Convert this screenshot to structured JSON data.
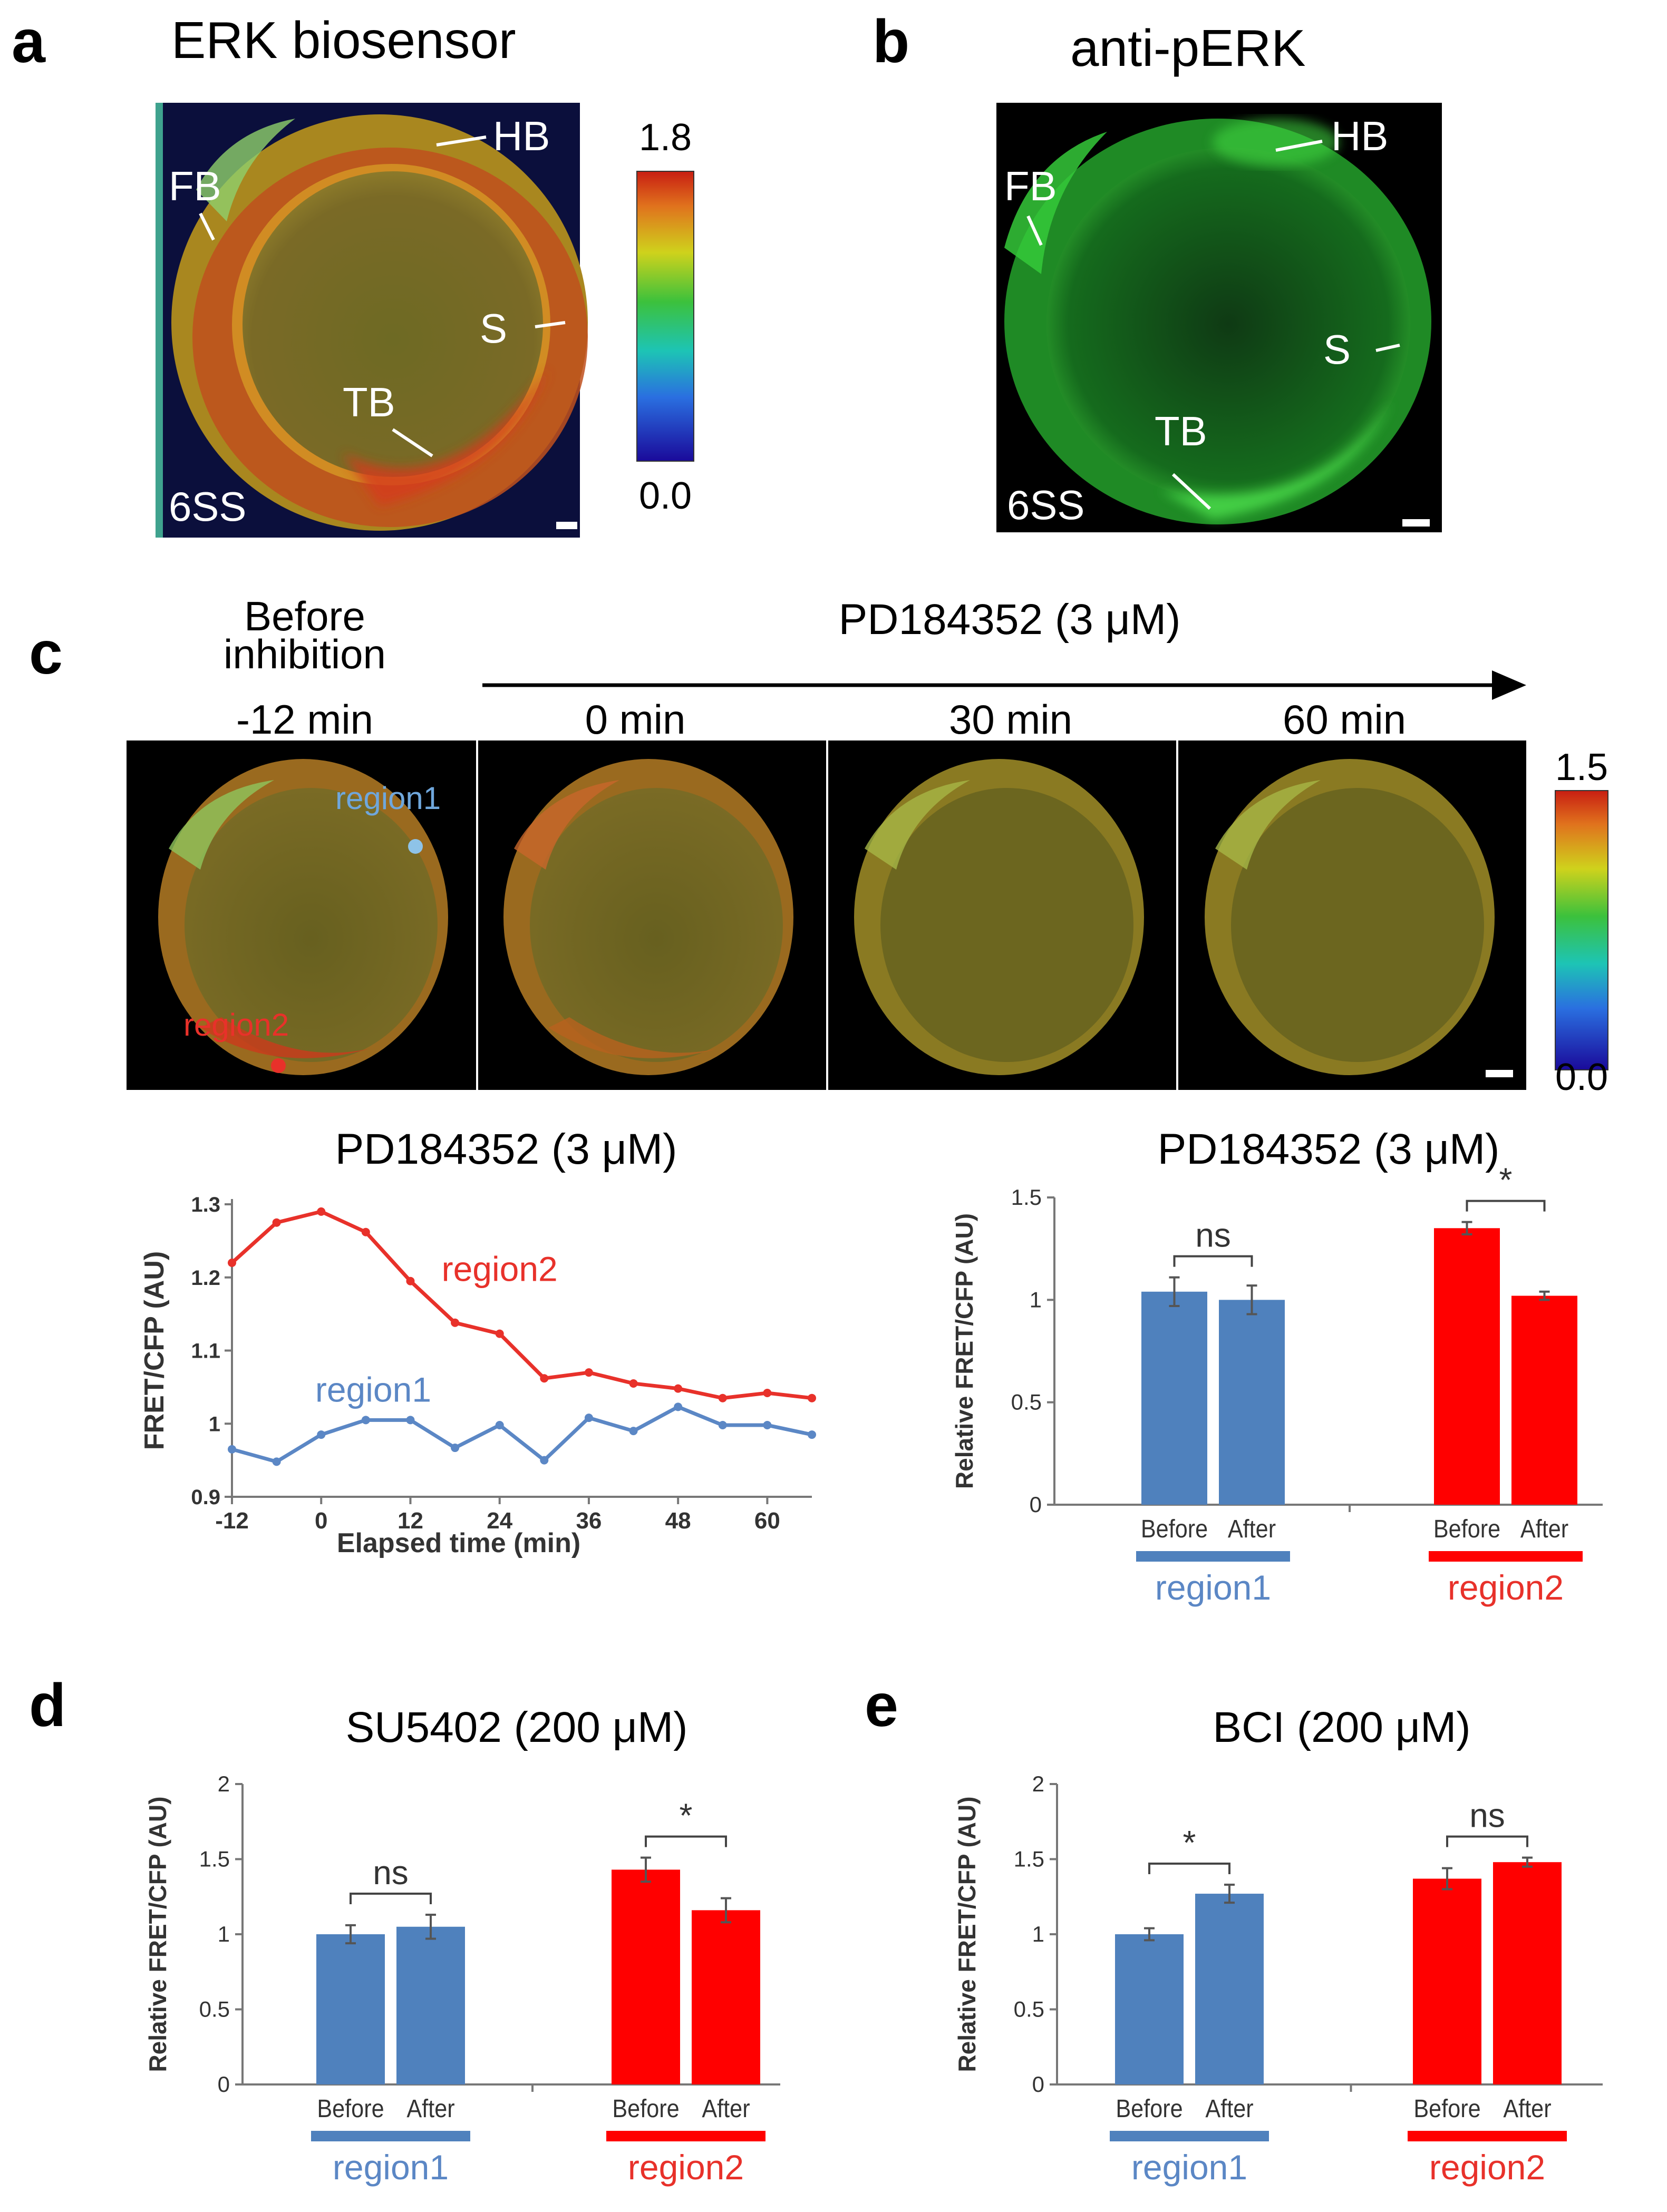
{
  "panel_a": {
    "letter": "a",
    "title": "ERK biosensor",
    "labels": {
      "hb": "HB",
      "fb": "FB",
      "s": "S",
      "tb": "TB"
    },
    "stage": "6SS",
    "scale": {
      "max": "1.8",
      "min": "0.0"
    }
  },
  "panel_b": {
    "letter": "b",
    "title": "anti-pERK",
    "labels": {
      "hb": "HB",
      "fb": "FB",
      "s": "S",
      "tb": "TB"
    },
    "stage": "6SS"
  },
  "panel_c": {
    "letter": "c",
    "before_label_1": "Before",
    "before_label_2": "inhibition",
    "drug": "PD184352 (3 μM)",
    "times": [
      "-12 min",
      "0 min",
      "30 min",
      "60 min"
    ],
    "region1_label": "region1",
    "region2_label": "region2",
    "scale": {
      "max": "1.5",
      "min": "0.0"
    }
  },
  "panel_d": {
    "letter": "d"
  },
  "panel_e": {
    "letter": "e"
  },
  "colors": {
    "region1": "#5b87c5",
    "region2": "#e8312a",
    "region1_bar": "#4f81bd",
    "region2_bar": "#ff0000"
  },
  "chart_data": [
    {
      "id": "c_line",
      "type": "line",
      "title": "PD184352 (3 μM)",
      "xlabel": "Elapsed time (min)",
      "ylabel": "FRET/CFP (AU)",
      "xlim": [
        -12,
        66
      ],
      "ylim": [
        0.9,
        1.3
      ],
      "xticks": [
        -12,
        0,
        12,
        24,
        36,
        48,
        60
      ],
      "yticks": [
        0.9,
        1,
        1.1,
        1.2,
        1.3
      ],
      "ytick_labels": [
        "0.9",
        "1",
        "1.1",
        "1.2",
        "1.3"
      ],
      "x": [
        -12,
        -6,
        0,
        6,
        12,
        18,
        24,
        30,
        36,
        42,
        48,
        54,
        60,
        66
      ],
      "series": [
        {
          "name": "region2",
          "values": [
            1.22,
            1.275,
            1.29,
            1.262,
            1.195,
            1.138,
            1.123,
            1.062,
            1.07,
            1.055,
            1.048,
            1.035,
            1.042,
            1.035
          ]
        },
        {
          "name": "region1",
          "values": [
            0.965,
            0.948,
            0.985,
            1.005,
            1.005,
            0.967,
            0.998,
            0.95,
            1.008,
            0.99,
            1.023,
            0.998,
            0.998,
            0.985
          ]
        }
      ]
    },
    {
      "id": "c_bar",
      "type": "bar",
      "title": "PD184352 (3 μM)",
      "ylabel": "Relative FRET/CFP (AU)",
      "ylim": [
        0,
        1.5
      ],
      "yticks": [
        0,
        0.5,
        1,
        1.5
      ],
      "ytick_labels": [
        "0",
        "0.5",
        "1",
        "1.5"
      ],
      "categories": [
        "Before",
        "After"
      ],
      "groups": [
        {
          "name": "region1",
          "values": [
            1.04,
            1.0
          ],
          "errors": [
            0.07,
            0.07
          ],
          "sig": "ns"
        },
        {
          "name": "region2",
          "values": [
            1.35,
            1.02
          ],
          "errors": [
            0.03,
            0.02
          ],
          "sig": "*"
        }
      ]
    },
    {
      "id": "d_bar",
      "type": "bar",
      "title": "SU5402 (200 μM)",
      "ylabel": "Relative FRET/CFP (AU)",
      "ylim": [
        0,
        2
      ],
      "yticks": [
        0,
        0.5,
        1,
        1.5,
        2
      ],
      "ytick_labels": [
        "0",
        "0.5",
        "1",
        "1.5",
        "2"
      ],
      "categories": [
        "Before",
        "After"
      ],
      "groups": [
        {
          "name": "region1",
          "values": [
            1.0,
            1.05
          ],
          "errors": [
            0.06,
            0.08
          ],
          "sig": "ns"
        },
        {
          "name": "region2",
          "values": [
            1.43,
            1.16
          ],
          "errors": [
            0.08,
            0.08
          ],
          "sig": "*"
        }
      ]
    },
    {
      "id": "e_bar",
      "type": "bar",
      "title": "BCI (200 μM)",
      "ylabel": "Relative FRET/CFP (AU)",
      "ylim": [
        0,
        2
      ],
      "yticks": [
        0,
        0.5,
        1,
        1.5,
        2
      ],
      "ytick_labels": [
        "0",
        "0.5",
        "1",
        "1.5",
        "2"
      ],
      "categories": [
        "Before",
        "After"
      ],
      "groups": [
        {
          "name": "region1",
          "values": [
            1.0,
            1.27
          ],
          "errors": [
            0.04,
            0.06
          ],
          "sig": "*"
        },
        {
          "name": "region2",
          "values": [
            1.37,
            1.48
          ],
          "errors": [
            0.07,
            0.03
          ],
          "sig": "ns"
        }
      ]
    }
  ]
}
